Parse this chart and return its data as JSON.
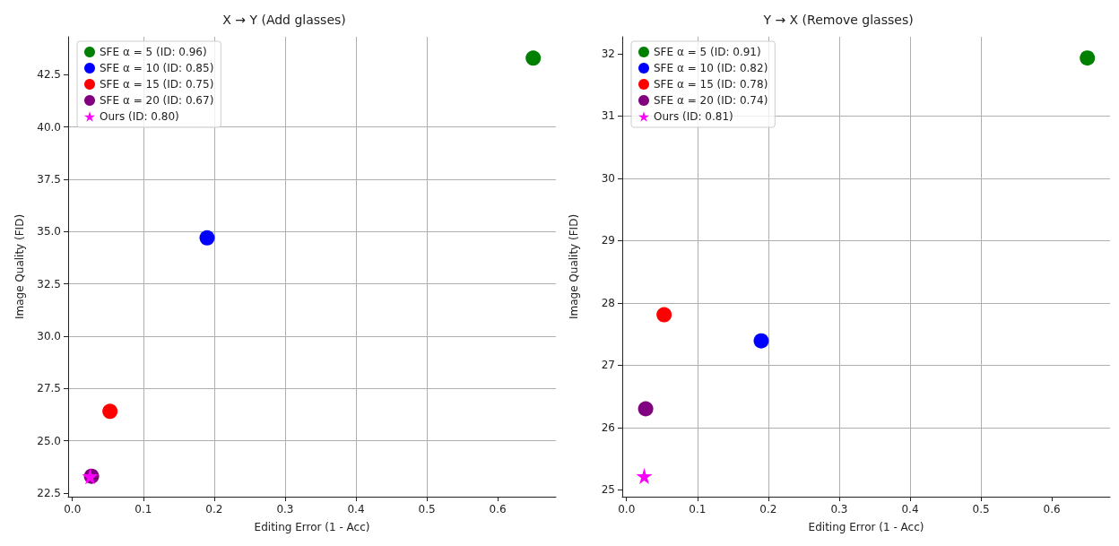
{
  "chart_data": [
    {
      "type": "scatter",
      "title": "X → Y (Add glasses)",
      "xlabel": "Editing Error (1 - Acc)",
      "ylabel": "Image Quality (FID)",
      "xlim": [
        -0.006,
        0.682
      ],
      "ylim": [
        22.32,
        44.32
      ],
      "xticks": [
        {
          "value": 0,
          "label": "0.0"
        },
        0.1,
        0.2,
        0.3,
        0.4,
        0.5,
        0.6
      ],
      "yticks": [
        22.5,
        {
          "value": 25,
          "label": "25.0"
        },
        27.5,
        {
          "value": 30,
          "label": "30.0"
        },
        32.5,
        {
          "value": 35,
          "label": "35.0"
        },
        37.5,
        {
          "value": 40,
          "label": "40.0"
        },
        42.5
      ],
      "grid": true,
      "legend": "top left",
      "series": [
        {
          "name": "SFE α = 5 (ID: 0.96)",
          "color": "#008000",
          "marker": "circle",
          "x": [
            0.65
          ],
          "values": [
            43.3
          ]
        },
        {
          "name": "SFE α = 10 (ID: 0.85)",
          "color": "#0000ff",
          "marker": "circle",
          "x": [
            0.19
          ],
          "values": [
            34.7
          ]
        },
        {
          "name": "SFE α = 15 (ID: 0.75)",
          "color": "#ff0000",
          "marker": "circle",
          "x": [
            0.053
          ],
          "values": [
            26.4
          ]
        },
        {
          "name": "SFE α = 20 (ID: 0.67)",
          "color": "#800080",
          "marker": "circle",
          "x": [
            0.027
          ],
          "values": [
            23.3
          ]
        },
        {
          "name": "Ours (ID: 0.80)",
          "color": "#ff00ff",
          "marker": "star",
          "x": [
            0.025
          ],
          "values": [
            23.3
          ]
        }
      ]
    },
    {
      "type": "scatter",
      "title": "Y → X (Remove glasses)",
      "xlabel": "Editing Error (1 - Acc)",
      "ylabel": "Image Quality (FID)",
      "xlim": [
        -0.006,
        0.682
      ],
      "ylim": [
        24.89,
        32.27
      ],
      "xticks": [
        {
          "value": 0,
          "label": "0.0"
        },
        0.1,
        0.2,
        0.3,
        0.4,
        0.5,
        0.6
      ],
      "yticks": [
        25,
        26,
        27,
        28,
        29,
        30,
        31,
        32
      ],
      "grid": true,
      "legend": "top left",
      "series": [
        {
          "name": "SFE α = 5 (ID: 0.91)",
          "color": "#008000",
          "marker": "circle",
          "x": [
            0.65
          ],
          "values": [
            31.93
          ]
        },
        {
          "name": "SFE α = 10 (ID: 0.82)",
          "color": "#0000ff",
          "marker": "circle",
          "x": [
            0.19
          ],
          "values": [
            27.39
          ]
        },
        {
          "name": "SFE α = 15 (ID: 0.78)",
          "color": "#ff0000",
          "marker": "circle",
          "x": [
            0.053
          ],
          "values": [
            27.81
          ]
        },
        {
          "name": "SFE α = 20 (ID: 0.74)",
          "color": "#800080",
          "marker": "circle",
          "x": [
            0.027
          ],
          "values": [
            26.3
          ]
        },
        {
          "name": "Ours (ID: 0.81)",
          "color": "#ff00ff",
          "marker": "star",
          "x": [
            0.025
          ],
          "values": [
            25.22
          ]
        }
      ]
    }
  ]
}
